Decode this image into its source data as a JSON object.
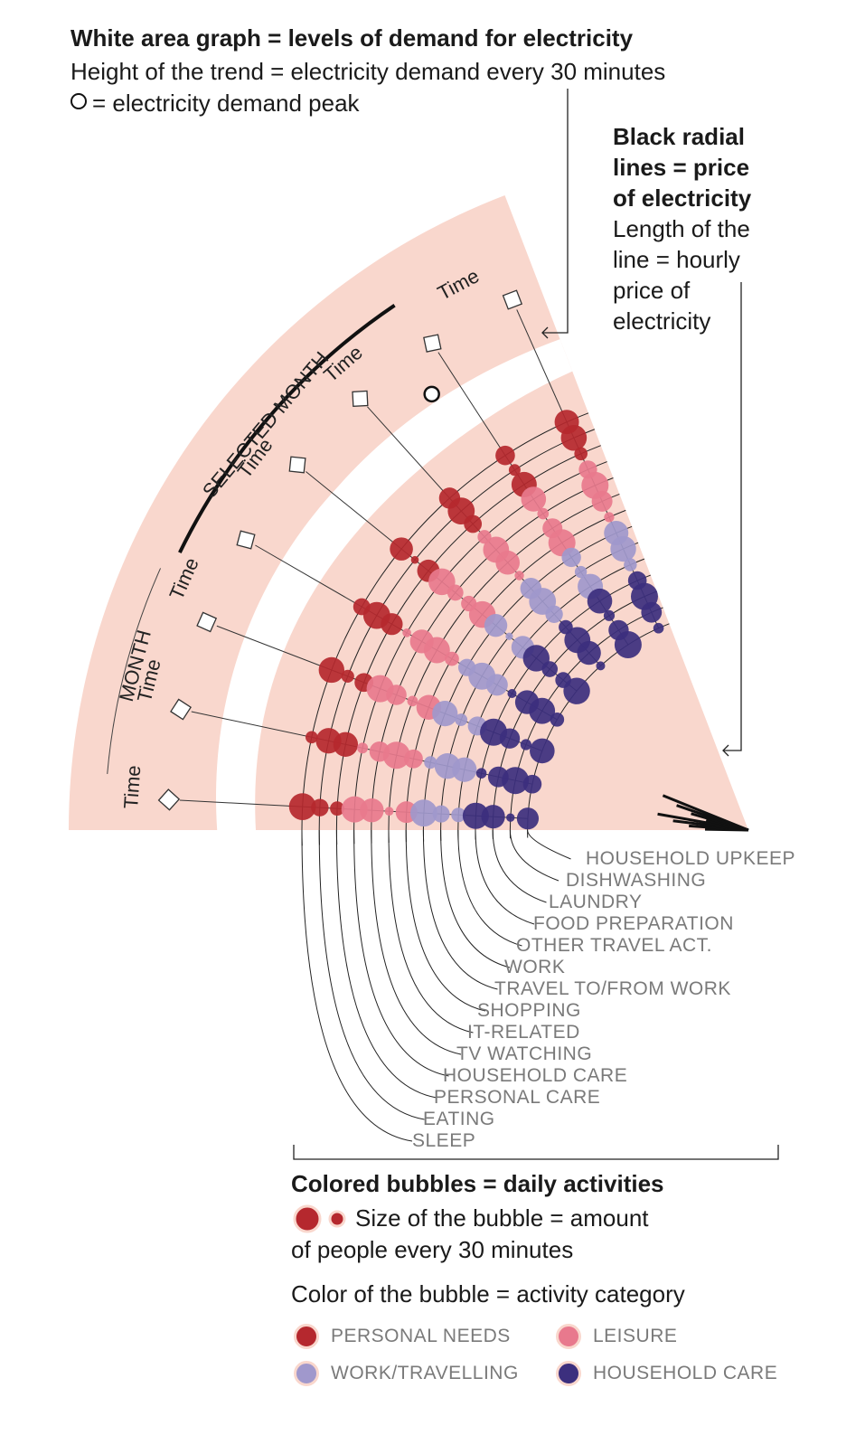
{
  "header": {
    "title": "White area graph =  levels of demand for electricity",
    "line2": "Height of the trend = electricity demand every 30 minutes",
    "peak_symbol": "O",
    "line3": "= electricity demand peak"
  },
  "price": {
    "title_lines": [
      "Black radial",
      "lines = price",
      "of electricity"
    ],
    "desc_lines": [
      "Length of the",
      "line = hourly",
      "price of",
      "electricity"
    ]
  },
  "wheel": {
    "month_label": "MONTH",
    "selected_month_label": "SELECTED MONTH",
    "time_label": "Time"
  },
  "activities": [
    "SLEEP",
    "EATING",
    "PERSONAL CARE",
    "HOUSEHOLD CARE",
    "TV WATCHING",
    "IT-RELATED",
    "SHOPPING",
    "TRAVEL TO/FROM WORK",
    "WORK",
    "OTHER TRAVEL ACT.",
    "FOOD PREPARATION",
    "LAUNDRY",
    "DISHWASHING",
    "HOUSEHOLD UPKEEP"
  ],
  "bubbles_legend": {
    "title": "Colored bubbles = daily activities",
    "size_line1": "Size of the bubble = amount",
    "size_line2": "of people every 30 minutes",
    "color_line": "Color of the bubble = activity category"
  },
  "categories": [
    {
      "label": "PERSONAL NEEDS",
      "color": "#b5282e"
    },
    {
      "label": "LEISURE",
      "color": "#e8798d"
    },
    {
      "label": "WORK/TRAVELLING",
      "color": "#a098cc"
    },
    {
      "label": "HOUSEHOLD CARE",
      "color": "#3c2f7e"
    }
  ],
  "colors": {
    "band": "#f9d7cd",
    "personal_needs": "#b5282e",
    "leisure": "#e8798d",
    "work_travelling": "#a098cc",
    "household_care": "#3c2f7e"
  }
}
